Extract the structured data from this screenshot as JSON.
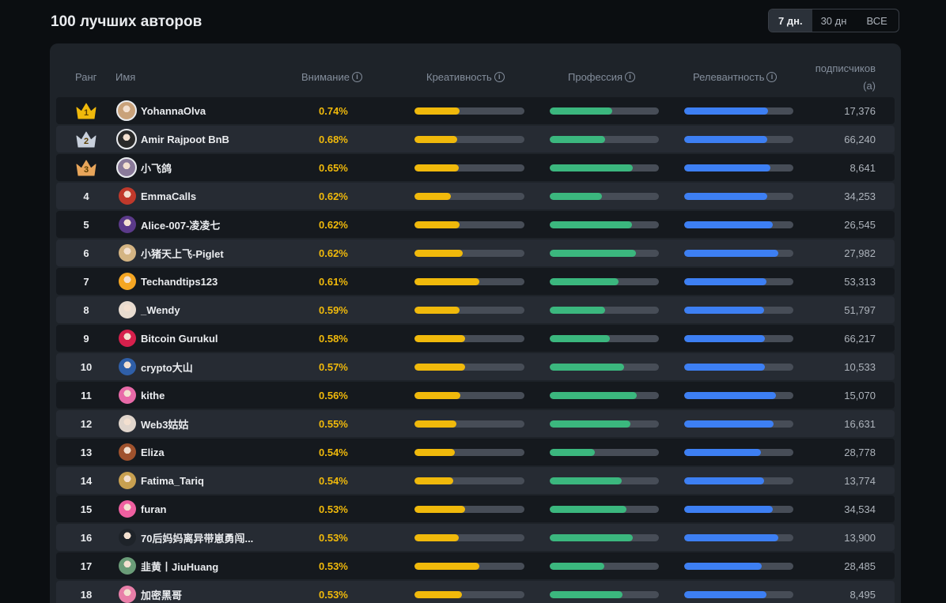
{
  "header": {
    "title": "100 лучших авторов"
  },
  "period_toggle": {
    "options": [
      "7 дн.",
      "30 дн",
      "ВСЕ"
    ],
    "selected": "7 дн."
  },
  "table": {
    "columns": {
      "rank": "Ранг",
      "name": "Имя",
      "attention": "Внимание",
      "creativity": "Креативность",
      "profession": "Профессия",
      "relevance": "Релевантность",
      "followers_line1": "подписчиков",
      "followers_line2": "(a)"
    },
    "info_glyph": "i",
    "colors": {
      "attention": "#f0b90b",
      "creativity": "#f0b90b",
      "profession": "#3bb77e",
      "relevance": "#3d7ff3",
      "crown_gold": "#f0b90b",
      "crown_silver": "#c8d0dc",
      "crown_bronze": "#e8a55a"
    },
    "rows": [
      {
        "rank": "1",
        "crown": "gold",
        "avatar_color": "#c9a27a",
        "name": "YohannaOlva",
        "attention": "0.74%",
        "creativity": 0.41,
        "profession": 0.57,
        "relevance": 0.77,
        "followers": "17,376"
      },
      {
        "rank": "2",
        "crown": "silver",
        "avatar_color": "#2a2a2a",
        "name": "Amir Rajpoot BnB",
        "attention": "0.68%",
        "creativity": 0.39,
        "profession": 0.51,
        "relevance": 0.76,
        "followers": "66,240"
      },
      {
        "rank": "3",
        "crown": "bronze",
        "avatar_color": "#8a7a9a",
        "name": "小飞鸽",
        "attention": "0.65%",
        "creativity": 0.4,
        "profession": 0.76,
        "relevance": 0.79,
        "followers": "8,641"
      },
      {
        "rank": "4",
        "crown": "",
        "avatar_color": "#c0392b",
        "name": "EmmaCalls",
        "attention": "0.62%",
        "creativity": 0.33,
        "profession": 0.48,
        "relevance": 0.76,
        "followers": "34,253"
      },
      {
        "rank": "5",
        "crown": "",
        "avatar_color": "#5b3a8a",
        "name": "Alice-007-凌凌七",
        "attention": "0.62%",
        "creativity": 0.41,
        "profession": 0.75,
        "relevance": 0.81,
        "followers": "26,545"
      },
      {
        "rank": "6",
        "crown": "",
        "avatar_color": "#d4b483",
        "name": "小猪天上飞-Piglet",
        "attention": "0.62%",
        "creativity": 0.44,
        "profession": 0.79,
        "relevance": 0.86,
        "followers": "27,982"
      },
      {
        "rank": "7",
        "crown": "",
        "avatar_color": "#f5a623",
        "name": "Techandtips123",
        "attention": "0.61%",
        "creativity": 0.59,
        "profession": 0.63,
        "relevance": 0.75,
        "followers": "53,313"
      },
      {
        "rank": "8",
        "crown": "",
        "avatar_color": "#e8dcd0",
        "name": "_Wendy",
        "attention": "0.59%",
        "creativity": 0.41,
        "profession": 0.51,
        "relevance": 0.73,
        "followers": "51,797"
      },
      {
        "rank": "9",
        "crown": "",
        "avatar_color": "#d6204c",
        "name": "Bitcoin Gurukul",
        "attention": "0.58%",
        "creativity": 0.46,
        "profession": 0.55,
        "relevance": 0.74,
        "followers": "66,217"
      },
      {
        "rank": "10",
        "crown": "",
        "avatar_color": "#2f5fa8",
        "name": "crypto大山",
        "attention": "0.57%",
        "creativity": 0.46,
        "profession": 0.68,
        "relevance": 0.74,
        "followers": "10,533"
      },
      {
        "rank": "11",
        "crown": "",
        "avatar_color": "#e86aa8",
        "name": "kithe",
        "attention": "0.56%",
        "creativity": 0.42,
        "profession": 0.8,
        "relevance": 0.84,
        "followers": "15,070"
      },
      {
        "rank": "12",
        "crown": "",
        "avatar_color": "#e0d5cc",
        "name": "Web3姑姑",
        "attention": "0.55%",
        "creativity": 0.38,
        "profession": 0.74,
        "relevance": 0.82,
        "followers": "16,631"
      },
      {
        "rank": "13",
        "crown": "",
        "avatar_color": "#a0522d",
        "name": "Eliza",
        "attention": "0.54%",
        "creativity": 0.37,
        "profession": 0.41,
        "relevance": 0.7,
        "followers": "28,778"
      },
      {
        "rank": "14",
        "crown": "",
        "avatar_color": "#c8a050",
        "name": "Fatima_Tariq",
        "attention": "0.54%",
        "creativity": 0.35,
        "profession": 0.66,
        "relevance": 0.73,
        "followers": "13,774"
      },
      {
        "rank": "15",
        "crown": "",
        "avatar_color": "#ee5fa0",
        "name": "furan",
        "attention": "0.53%",
        "creativity": 0.46,
        "profession": 0.7,
        "relevance": 0.81,
        "followers": "34,534"
      },
      {
        "rank": "16",
        "crown": "",
        "avatar_color": "#1e2329",
        "name": "70后妈妈离异带崽勇闯...",
        "attention": "0.53%",
        "creativity": 0.4,
        "profession": 0.76,
        "relevance": 0.86,
        "followers": "13,900"
      },
      {
        "rank": "17",
        "crown": "",
        "avatar_color": "#6a9c78",
        "name": "韭黄丨JiuHuang",
        "attention": "0.53%",
        "creativity": 0.59,
        "profession": 0.5,
        "relevance": 0.71,
        "followers": "28,485"
      },
      {
        "rank": "18",
        "crown": "",
        "avatar_color": "#e87ea8",
        "name": "加密黑哥",
        "attention": "0.53%",
        "creativity": 0.43,
        "profession": 0.67,
        "relevance": 0.75,
        "followers": "8,495"
      }
    ]
  }
}
